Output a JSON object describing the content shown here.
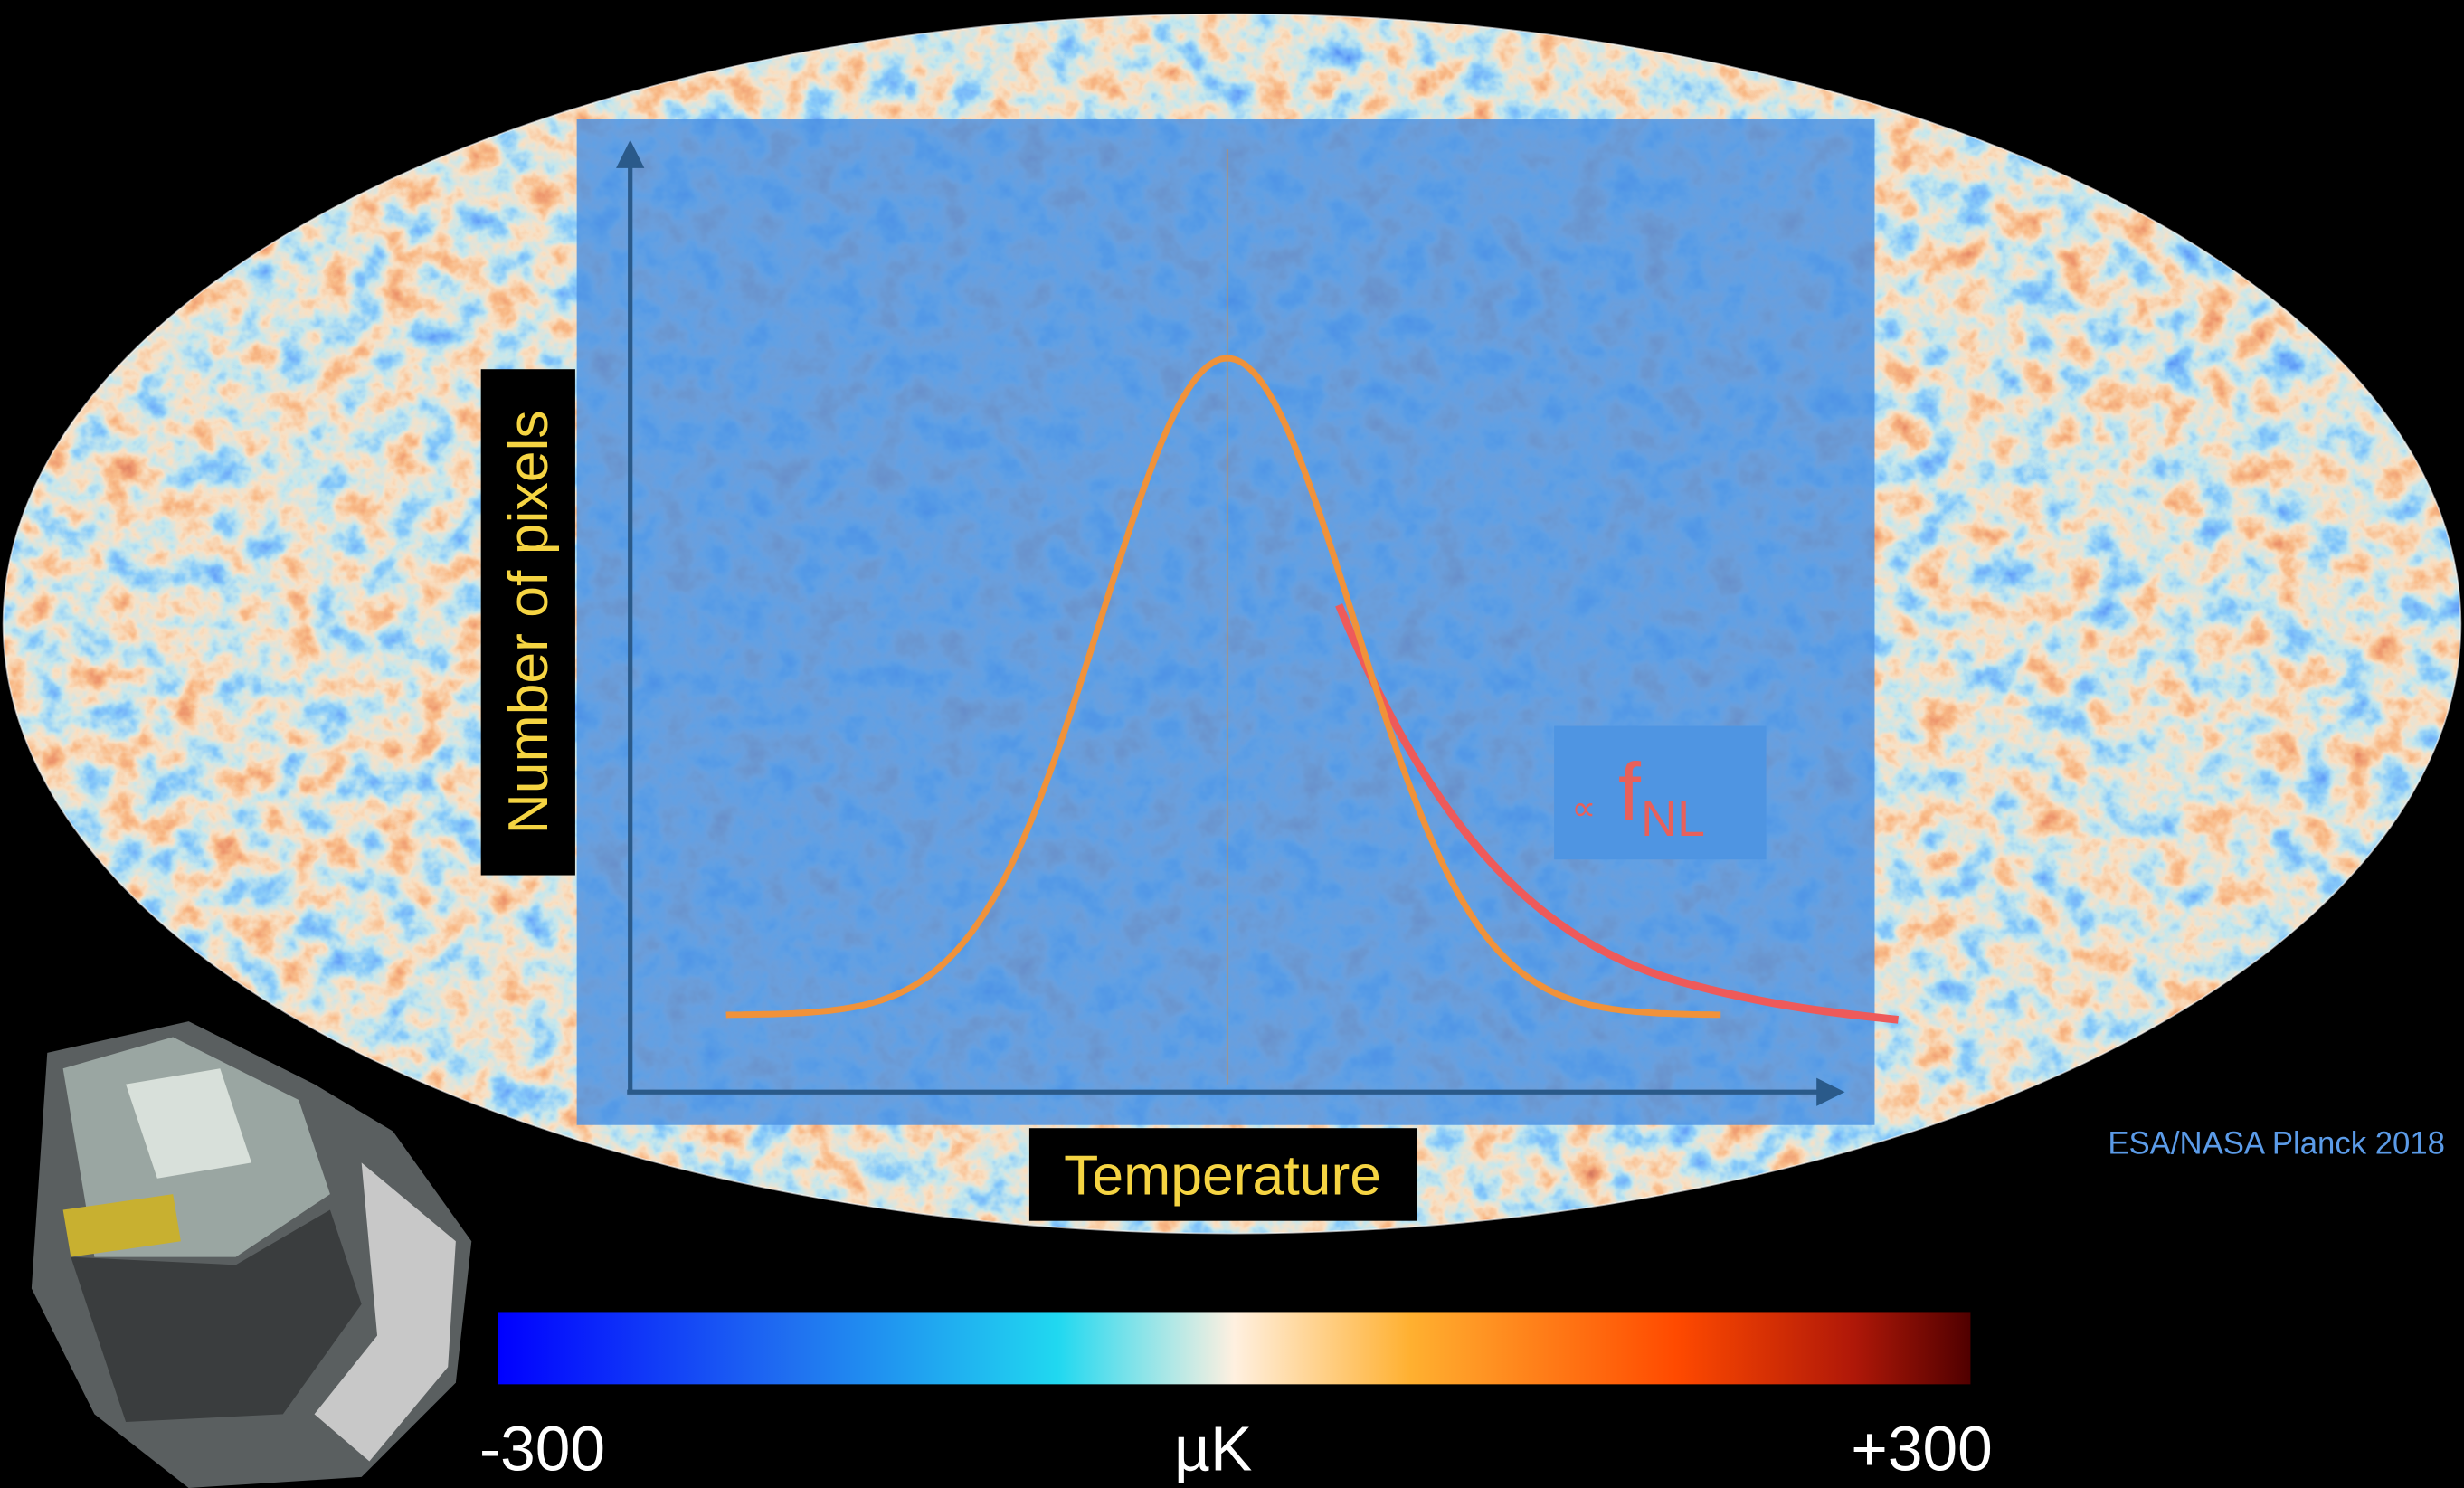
{
  "figure": {
    "y_axis_label": "Number of pixels",
    "x_axis_label": "Temperature",
    "annotation": {
      "symbol": "∝",
      "main": "f",
      "subscript": "NL"
    },
    "credit": "ESA/NASA Planck 2018",
    "colorbar": {
      "min_label": "-300",
      "unit_label": "µK",
      "max_label": "+300"
    }
  }
}
